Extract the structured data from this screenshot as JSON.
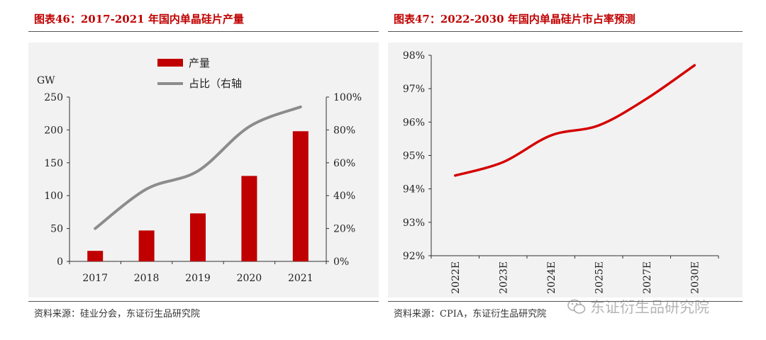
{
  "left": {
    "title": "图表46：2017-2021 年国内单晶硅片产量",
    "source": "资料来源：硅业分会，东证衍生品研究院"
  },
  "right": {
    "title": "图表47：2022-2030 年国内单晶硅片市占率预测",
    "source": "资料来源：CPIA，东证衍生品研究院"
  },
  "watermark": "东证衍生品研究院",
  "colors": {
    "bar": "#c00000",
    "line_left": "#8c8c8c",
    "line_right": "#d40000",
    "panel": "#f2f2f2"
  },
  "chart_data": [
    {
      "type": "bar",
      "title": "2017-2021 年国内单晶硅片产量",
      "categories": [
        "2017",
        "2018",
        "2019",
        "2020",
        "2021"
      ],
      "series": [
        {
          "name": "产量",
          "type": "bar",
          "axis": "left",
          "values": [
            16,
            47,
            73,
            130,
            198
          ]
        },
        {
          "name": "占比（右轴",
          "type": "line",
          "axis": "right",
          "values": [
            20,
            44,
            55,
            82,
            94
          ]
        }
      ],
      "ylabel": "GW",
      "ylim": [
        0,
        250
      ],
      "yticks": [
        "0",
        "50",
        "100",
        "150",
        "200",
        "250"
      ],
      "y2lim": [
        0,
        100
      ],
      "y2ticks": [
        "0%",
        "20%",
        "40%",
        "60%",
        "80%",
        "100%"
      ],
      "legend": "top-center"
    },
    {
      "type": "line",
      "title": "2022-2030 年国内单晶硅片市占率预测",
      "categories": [
        "2022E",
        "2023E",
        "2024E",
        "2025E",
        "2027E",
        "2030E"
      ],
      "series": [
        {
          "name": "单晶硅片市占率",
          "values": [
            94.4,
            94.8,
            95.6,
            95.9,
            96.7,
            97.7
          ]
        }
      ],
      "ylim": [
        92,
        98
      ],
      "yticks": [
        "92%",
        "93%",
        "94%",
        "95%",
        "96%",
        "97%",
        "98%"
      ]
    }
  ]
}
